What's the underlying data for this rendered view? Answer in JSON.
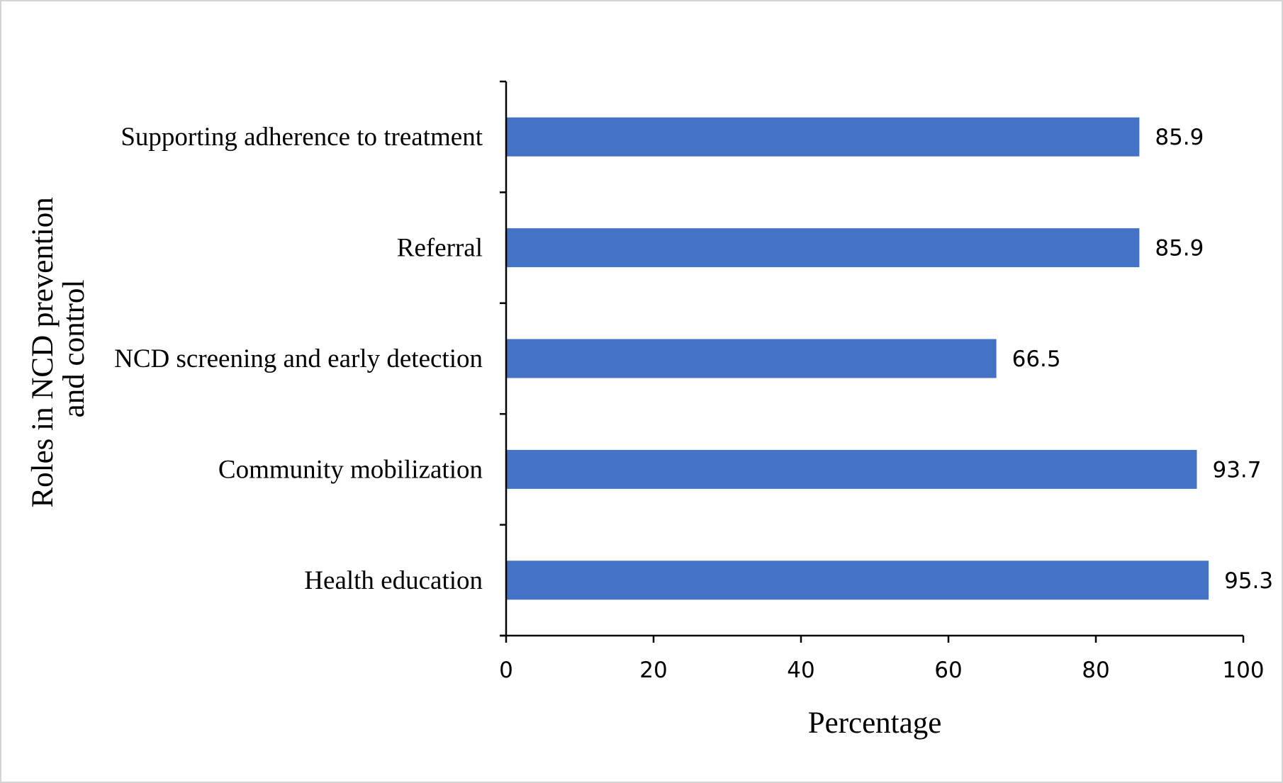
{
  "chart_data": {
    "type": "bar",
    "orientation": "horizontal",
    "categories": [
      "Supporting adherence to treatment",
      "Referral",
      "NCD screening and early detection",
      "Community mobilization",
      "Health education"
    ],
    "values": [
      85.9,
      85.9,
      66.5,
      93.7,
      95.3
    ],
    "data_labels": [
      "85.9",
      "85.9",
      "66.5",
      "93.7",
      "95.3"
    ],
    "xlabel": "Percentage",
    "ylabel_lines": [
      "Roles in NCD prevention",
      "and control"
    ],
    "xlim": [
      0,
      100
    ],
    "x_ticks": [
      0,
      20,
      40,
      60,
      80,
      100
    ],
    "x_tick_labels": [
      "0",
      "20",
      "40",
      "60",
      "80",
      "100"
    ],
    "grid": false,
    "legend": "none",
    "bar_color": "#4472C4"
  }
}
